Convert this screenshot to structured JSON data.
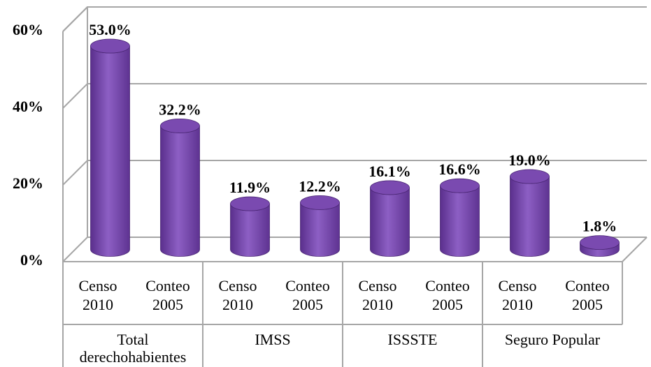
{
  "chart_data": {
    "type": "bar",
    "categories": [
      "Censo 2010",
      "Conteo 2005",
      "Censo 2010",
      "Conteo 2005",
      "Censo 2010",
      "Conteo 2005",
      "Censo 2010",
      "Conteo 2005"
    ],
    "category_groups": [
      "Total derechohabientes",
      "IMSS",
      "ISSSTE",
      "Seguro Popular"
    ],
    "values": [
      53.0,
      32.2,
      11.9,
      12.2,
      16.1,
      16.6,
      19.0,
      1.8
    ],
    "value_labels": [
      "53.0%",
      "32.2%",
      "11.9%",
      "12.2%",
      "16.1%",
      "16.6%",
      "19.0%",
      "1.8%"
    ],
    "color": "#7a4ab0",
    "ylim": [
      0,
      60
    ],
    "yticks": [
      {
        "value": 0,
        "label": "0%"
      },
      {
        "value": 20,
        "label": "20%"
      },
      {
        "value": 40,
        "label": "40%"
      },
      {
        "value": 60,
        "label": "60%"
      }
    ],
    "grid": true
  }
}
